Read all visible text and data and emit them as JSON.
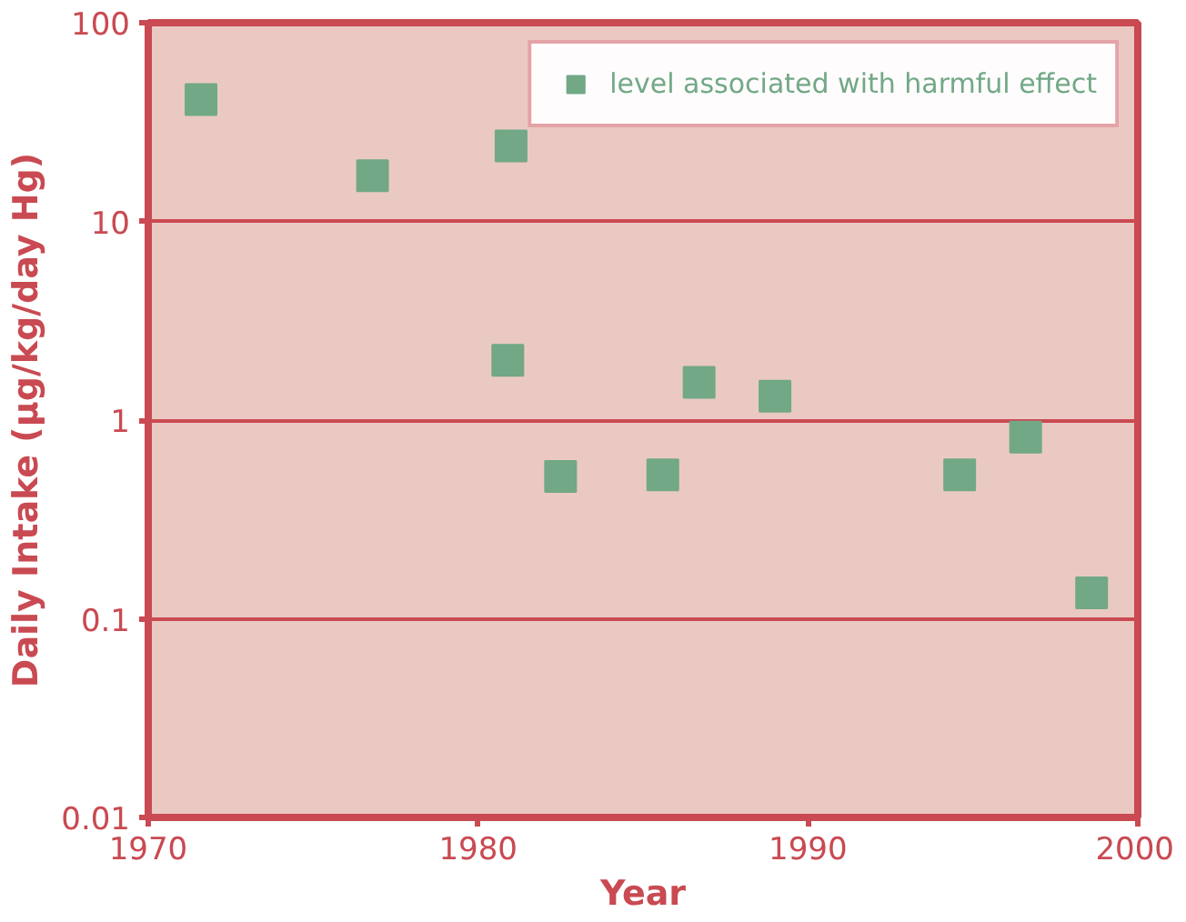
{
  "chart_data": {
    "type": "scatter",
    "xlabel": "Year",
    "ylabel": "Daily Intake (µg/kg/day Hg)",
    "x": [
      1971.6,
      1976.8,
      1981.0,
      1980.9,
      1982.5,
      1985.6,
      1986.7,
      1989.0,
      1994.6,
      1996.6,
      1998.6
    ],
    "series": [
      {
        "name": "level associated with harmful effect",
        "color": "#72a886",
        "values": [
          41,
          17,
          24,
          2.0,
          0.52,
          0.53,
          1.55,
          1.32,
          0.53,
          0.82,
          0.135
        ]
      }
    ],
    "xlim": [
      1970,
      2000
    ],
    "xticks": [
      1970,
      1980,
      1990,
      2000
    ],
    "ylim": [
      0.01,
      100
    ],
    "yticks": [
      0.01,
      0.1,
      1,
      10,
      100
    ],
    "log": "y",
    "grid": "y",
    "legend": "top right",
    "marker": "square"
  }
}
